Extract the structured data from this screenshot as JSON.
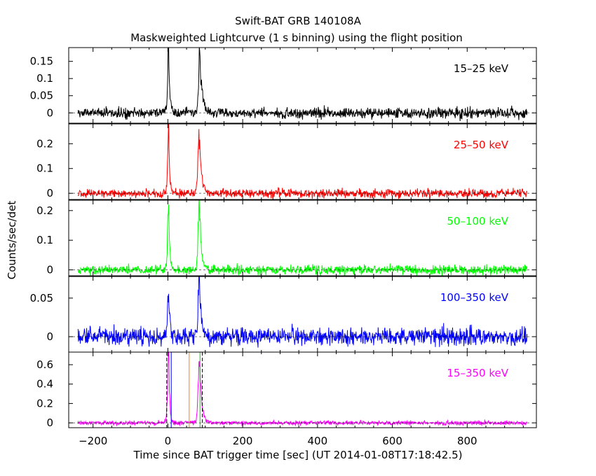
{
  "title": "Swift-BAT GRB 140108A",
  "subtitle": "Maskweighted Lightcurve (1 s binning) using the flight position",
  "chart_data": {
    "type": "line",
    "title": "Swift-BAT GRB 140108A",
    "subtitle": "Maskweighted Lightcurve (1 s binning) using the flight position",
    "xlabel": "Time since BAT trigger time [sec] (UT 2014-01-08T17:18:42.5)",
    "ylabel": "Counts/sec/det",
    "xlim": [
      -265,
      985
    ],
    "x_ticks": [
      -200,
      0,
      200,
      400,
      600,
      800
    ],
    "x_tick_labels": [
      "−200",
      "0",
      "200",
      "400",
      "600",
      "800"
    ],
    "x_range": [
      -240,
      960
    ],
    "panels": [
      {
        "name": "15-25 keV",
        "label": "15–25 keV",
        "color": "#000000",
        "ylim": [
          -0.03,
          0.19
        ],
        "y_ticks": [
          0,
          0.05,
          0.1,
          0.15
        ],
        "y_tick_labels": [
          "0",
          "0.05",
          "0.1",
          "0.15"
        ],
        "noise": 0.008,
        "peaks": [
          {
            "t": 2,
            "y": 0.19,
            "w": 2.5,
            "decay": 1.4
          },
          {
            "t": 85,
            "y": 0.17,
            "w": 3,
            "decay": 3
          }
        ]
      },
      {
        "name": "25-50 keV",
        "label": "25–50 keV",
        "color": "#ff0000",
        "ylim": [
          -0.025,
          0.28
        ],
        "y_ticks": [
          0,
          0.1,
          0.2
        ],
        "y_tick_labels": [
          "0",
          "0.1",
          "0.2"
        ],
        "noise": 0.009,
        "peaks": [
          {
            "t": 2,
            "y": 0.27,
            "w": 2.5,
            "decay": 1.3
          },
          {
            "t": 84,
            "y": 0.25,
            "w": 3,
            "decay": 2.6
          }
        ]
      },
      {
        "name": "50-100 keV",
        "label": "50–100 keV",
        "color": "#00ff00",
        "ylim": [
          -0.02,
          0.235
        ],
        "y_ticks": [
          0,
          0.1,
          0.2
        ],
        "y_tick_labels": [
          "0",
          "0.1",
          "0.2"
        ],
        "noise": 0.008,
        "peaks": [
          {
            "t": 2,
            "y": 0.22,
            "w": 2.5,
            "decay": 1.3
          },
          {
            "t": 84,
            "y": 0.21,
            "w": 3,
            "decay": 2.6
          }
        ]
      },
      {
        "name": "100-350 keV",
        "label": "100–350 keV",
        "color": "#0000ff",
        "ylim": [
          -0.02,
          0.078
        ],
        "y_ticks": [
          0,
          0.05
        ],
        "y_tick_labels": [
          "0",
          "0.05"
        ],
        "noise": 0.006,
        "peaks": [
          {
            "t": 2,
            "y": 0.055,
            "w": 3,
            "decay": 1.8
          },
          {
            "t": 84,
            "y": 0.077,
            "w": 3,
            "decay": 2.6
          }
        ]
      },
      {
        "name": "15-350 keV",
        "label": "15–350 keV",
        "color": "#ff00ff",
        "ylim": [
          -0.05,
          0.73
        ],
        "y_ticks": [
          0,
          0.2,
          0.4,
          0.6
        ],
        "y_tick_labels": [
          "0",
          "0.2",
          "0.4",
          "0.6"
        ],
        "noise": 0.012,
        "peaks": [
          {
            "t": 2,
            "y": 0.72,
            "w": 2.5,
            "decay": 1.3
          },
          {
            "t": 84,
            "y": 0.7,
            "w": 3,
            "decay": 2.6
          }
        ],
        "markers": [
          {
            "t": -3,
            "color": "#000000",
            "style": "dashed"
          },
          {
            "t": 9,
            "color": "#0000ff",
            "style": "solid"
          },
          {
            "t": 57,
            "color": "#ff8000",
            "style": "solid"
          },
          {
            "t": 86,
            "color": "#00cc00",
            "style": "solid"
          },
          {
            "t": 92,
            "color": "#000000",
            "style": "dashed"
          }
        ]
      }
    ]
  }
}
